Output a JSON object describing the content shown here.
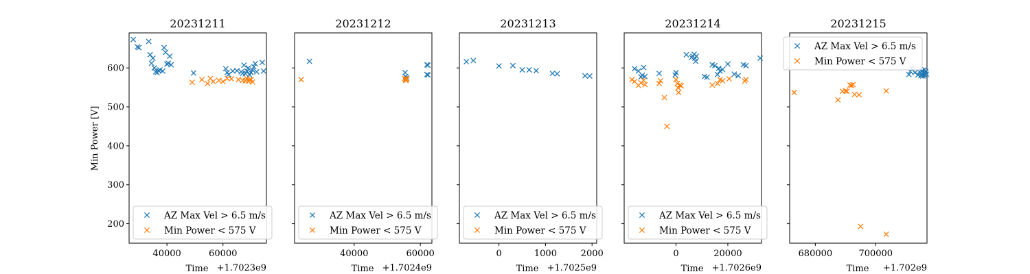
{
  "figure": {
    "ylabel": "Min Power [V]",
    "xlabel": "Time",
    "series_colors": {
      "AZ Max Vel > 6.5 m/s": "#1f77b4",
      "Min Power < 575 V": "#ff7f0e"
    },
    "marker": "x"
  },
  "chart_data": [
    {
      "type": "scatter",
      "title": "20231211",
      "xlabel": "Time",
      "x_offset_label": "+1.7023e9",
      "ylabel": "Min Power [V]",
      "xlim": [
        26500,
        75500
      ],
      "ylim": [
        150,
        690
      ],
      "xticks": [
        40000,
        60000
      ],
      "yticks": [
        200,
        300,
        400,
        500,
        600
      ],
      "legend_position": "lower-right",
      "series": [
        {
          "name": "AZ Max Vel > 6.5 m/s",
          "color": "#1f77b4",
          "points": [
            [
              28000,
              673
            ],
            [
              29500,
              654
            ],
            [
              30000,
              652
            ],
            [
              33500,
              668
            ],
            [
              34000,
              634
            ],
            [
              34500,
              612
            ],
            [
              35000,
              625
            ],
            [
              35500,
              600
            ],
            [
              36000,
              590
            ],
            [
              36500,
              588
            ],
            [
              37000,
              593
            ],
            [
              37500,
              595
            ],
            [
              38500,
              592
            ],
            [
              39000,
              652
            ],
            [
              39500,
              640
            ],
            [
              40000,
              610
            ],
            [
              40500,
              612
            ],
            [
              41000,
              630
            ],
            [
              41500,
              608
            ],
            [
              49500,
              587
            ],
            [
              61000,
              598
            ],
            [
              61500,
              588
            ],
            [
              62000,
              583
            ],
            [
              63500,
              592
            ],
            [
              65000,
              593
            ],
            [
              66500,
              590
            ],
            [
              67000,
              586
            ],
            [
              67500,
              607
            ],
            [
              68000,
              585
            ],
            [
              68500,
              592
            ],
            [
              69000,
              600
            ],
            [
              69500,
              582
            ],
            [
              70000,
              588
            ],
            [
              70500,
              595
            ],
            [
              71000,
              603
            ],
            [
              71500,
              611
            ],
            [
              72000,
              590
            ],
            [
              74000,
              614
            ],
            [
              74500,
              592
            ]
          ]
        },
        {
          "name": "Min Power < 575 V",
          "color": "#ff7f0e",
          "points": [
            [
              49000,
              563
            ],
            [
              52500,
              570
            ],
            [
              54500,
              560
            ],
            [
              55500,
              573
            ],
            [
              56500,
              565
            ],
            [
              58500,
              568
            ],
            [
              60000,
              565
            ],
            [
              61500,
              573
            ],
            [
              63000,
              572
            ],
            [
              65500,
              570
            ],
            [
              67000,
              568
            ],
            [
              68000,
              567
            ],
            [
              68500,
              573
            ],
            [
              69000,
              566
            ],
            [
              69500,
              569
            ],
            [
              70000,
              570
            ],
            [
              70500,
              564
            ]
          ]
        }
      ]
    },
    {
      "type": "scatter",
      "title": "20231212",
      "xlabel": "Time",
      "x_offset_label": "+1.7024e9",
      "xlim": [
        22000,
        63500
      ],
      "ylim": [
        150,
        690
      ],
      "xticks": [
        40000,
        60000
      ],
      "yticks": [
        200,
        300,
        400,
        500,
        600
      ],
      "legend_position": "lower-right",
      "series": [
        {
          "name": "AZ Max Vel > 6.5 m/s",
          "color": "#1f77b4",
          "points": [
            [
              26500,
              617
            ],
            [
              55400,
              588
            ],
            [
              55600,
              578
            ],
            [
              55800,
              574
            ],
            [
              62000,
              608
            ],
            [
              62300,
              607
            ],
            [
              62000,
              583
            ],
            [
              62300,
              582
            ]
          ]
        },
        {
          "name": "Min Power < 575 V",
          "color": "#ff7f0e",
          "points": [
            [
              24000,
              570
            ],
            [
              55300,
              573
            ],
            [
              55500,
              569
            ],
            [
              55700,
              568
            ],
            [
              55900,
              572
            ],
            [
              55600,
              571
            ]
          ]
        }
      ]
    },
    {
      "type": "scatter",
      "title": "20231213",
      "xlabel": "Time",
      "x_offset_label": "+1.7025e9",
      "xlim": [
        -850,
        2100
      ],
      "ylim": [
        150,
        690
      ],
      "xticks": [
        0,
        1000,
        2000
      ],
      "yticks": [
        200,
        300,
        400,
        500,
        600
      ],
      "legend_position": "lower-right",
      "series": [
        {
          "name": "AZ Max Vel > 6.5 m/s",
          "color": "#1f77b4",
          "points": [
            [
              -700,
              616
            ],
            [
              -550,
              619
            ],
            [
              0,
              605
            ],
            [
              300,
              606
            ],
            [
              500,
              595
            ],
            [
              650,
              595
            ],
            [
              800,
              593
            ],
            [
              1150,
              586
            ],
            [
              1250,
              585
            ],
            [
              1850,
              580
            ],
            [
              1950,
              579
            ]
          ]
        }
      ]
    },
    {
      "type": "scatter",
      "title": "20231214",
      "xlabel": "Time",
      "x_offset_label": "+1.7026e9",
      "xlim": [
        -20000,
        33000
      ],
      "ylim": [
        150,
        690
      ],
      "xticks": [
        0,
        20000
      ],
      "yticks": [
        200,
        300,
        400,
        500,
        600
      ],
      "legend_position": "lower-right",
      "series": [
        {
          "name": "AZ Max Vel > 6.5 m/s",
          "color": "#1f77b4",
          "points": [
            [
              -16000,
              598
            ],
            [
              -14500,
              592
            ],
            [
              -13500,
              577
            ],
            [
              -13000,
              581
            ],
            [
              -12500,
              601
            ],
            [
              -12000,
              578
            ],
            [
              -6500,
              586
            ],
            [
              0,
              588
            ],
            [
              -300,
              582
            ],
            [
              4000,
              634
            ],
            [
              6000,
              627
            ],
            [
              6500,
              630
            ],
            [
              7000,
              635
            ],
            [
              7300,
              625
            ],
            [
              7600,
              617
            ],
            [
              7800,
              630
            ],
            [
              11000,
              578
            ],
            [
              12000,
              576
            ],
            [
              14000,
              608
            ],
            [
              15000,
              606
            ],
            [
              16000,
              583
            ],
            [
              16500,
              599
            ],
            [
              17000,
              592
            ],
            [
              18000,
              596
            ],
            [
              20000,
              610
            ],
            [
              22500,
              584
            ],
            [
              24000,
              580
            ],
            [
              26000,
              608
            ],
            [
              27000,
              606
            ],
            [
              32500,
              625
            ]
          ]
        },
        {
          "name": "Min Power < 575 V",
          "color": "#ff7f0e",
          "points": [
            [
              -17000,
              570
            ],
            [
              -16000,
              565
            ],
            [
              -14500,
              555
            ],
            [
              -13500,
              562
            ],
            [
              -12500,
              568
            ],
            [
              -12000,
              557
            ],
            [
              -6500,
              560
            ],
            [
              -6000,
              567
            ],
            [
              -4500,
              524
            ],
            [
              -3500,
              450
            ],
            [
              0,
              570
            ],
            [
              500,
              560
            ],
            [
              800,
              549
            ],
            [
              1000,
              537
            ],
            [
              1500,
              556
            ],
            [
              2000,
              554
            ],
            [
              14000,
              556
            ],
            [
              16000,
              560
            ],
            [
              17000,
              570
            ],
            [
              18000,
              567
            ],
            [
              20500,
              572
            ],
            [
              26500,
              566
            ],
            [
              27000,
              570
            ]
          ]
        }
      ]
    },
    {
      "type": "scatter",
      "title": "20231215",
      "xlabel": "Time",
      "x_offset_label": "+1.702e9",
      "xlim": [
        671500,
        717000
      ],
      "ylim": [
        150,
        690
      ],
      "xticks": [
        680000,
        700000
      ],
      "yticks": [
        200,
        300,
        400,
        500,
        600
      ],
      "legend_position": "upper-right",
      "series": [
        {
          "name": "AZ Max Vel > 6.5 m/s",
          "color": "#1f77b4",
          "points": [
            [
              711000,
              583
            ],
            [
              711500,
              591
            ],
            [
              712000,
              599
            ],
            [
              713000,
              588
            ],
            [
              714000,
              582
            ],
            [
              714500,
              590
            ],
            [
              715000,
              580
            ],
            [
              715200,
              585
            ],
            [
              715400,
              593
            ],
            [
              715600,
              579
            ],
            [
              715800,
              588
            ],
            [
              716000,
              582
            ],
            [
              716200,
              596
            ],
            [
              716400,
              580
            ],
            [
              716600,
              590
            ],
            [
              716800,
              584
            ]
          ]
        },
        {
          "name": "Min Power < 575 V",
          "color": "#ff7f0e",
          "points": [
            [
              673000,
              537
            ],
            [
              687500,
              518
            ],
            [
              689000,
              540
            ],
            [
              690000,
              541
            ],
            [
              690500,
              540
            ],
            [
              691500,
              556
            ],
            [
              692000,
              555
            ],
            [
              692500,
              557
            ],
            [
              693000,
              532
            ],
            [
              694500,
              531
            ],
            [
              695000,
              193
            ],
            [
              703500,
              541
            ],
            [
              703500,
              173
            ]
          ]
        }
      ]
    }
  ]
}
